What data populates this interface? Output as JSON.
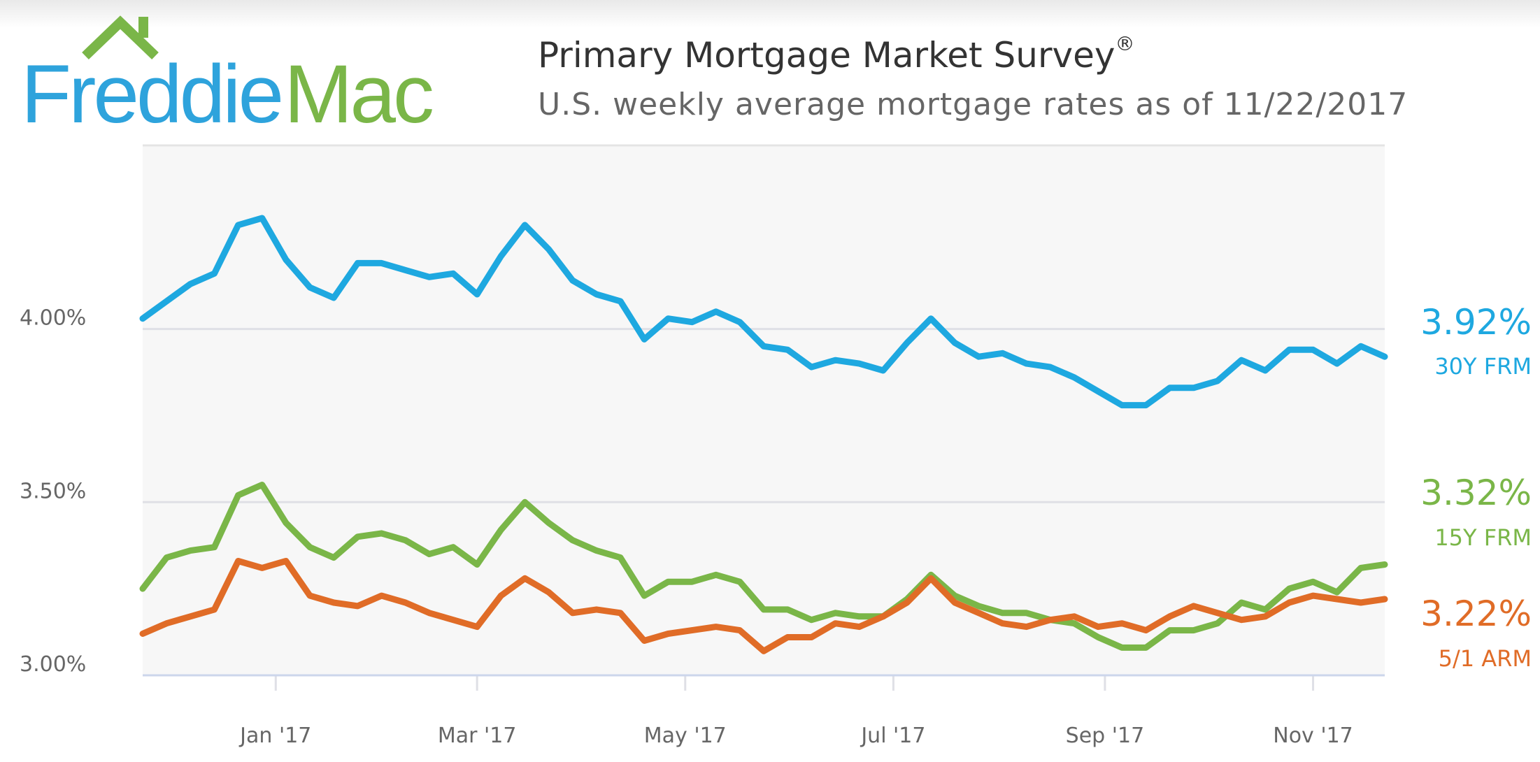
{
  "header": {
    "logo_text_1": "Freddie",
    "logo_text_2": "Mac",
    "title": "Primary Mortgage Market Survey",
    "title_mark": "®",
    "subtitle": "U.S. weekly average mortgage rates as of 11/22/2017"
  },
  "colors": {
    "blue": "#1ea8e0",
    "green": "#7ab648",
    "orange": "#e06c27",
    "plot_bg": "#f7f7f7",
    "grid": "#dfe0e6"
  },
  "chart_data": {
    "type": "line",
    "title": "Primary Mortgage Market Survey",
    "subtitle": "U.S. weekly average mortgage rates as of 11/22/2017",
    "x_start": "2016-11-23",
    "x_step_days": 7,
    "x_end": "2017-11-22",
    "xlabel": "",
    "ylabel": "",
    "ylim": [
      3.0,
      4.53
    ],
    "grid": true,
    "y_ticks": [
      {
        "value": 4.0,
        "label": "4.00%"
      },
      {
        "value": 3.5,
        "label": "3.50%"
      },
      {
        "value": 3.0,
        "label": "3.00%"
      }
    ],
    "x_ticks": [
      {
        "date": "2017-01-01",
        "label": "Jan '17"
      },
      {
        "date": "2017-03-01",
        "label": "Mar '17"
      },
      {
        "date": "2017-05-01",
        "label": "May '17"
      },
      {
        "date": "2017-07-01",
        "label": "Jul '17"
      },
      {
        "date": "2017-09-01",
        "label": "Sep '17"
      },
      {
        "date": "2017-11-01",
        "label": "Nov '17"
      }
    ],
    "series": [
      {
        "name": "30Y FRM",
        "latest": "3.92%",
        "color": "#1ea8e0",
        "values": [
          4.03,
          4.08,
          4.13,
          4.16,
          4.3,
          4.32,
          4.2,
          4.12,
          4.09,
          4.19,
          4.19,
          4.17,
          4.15,
          4.16,
          4.1,
          4.21,
          4.3,
          4.23,
          4.14,
          4.1,
          4.08,
          3.97,
          4.03,
          4.02,
          4.05,
          4.02,
          3.95,
          3.94,
          3.89,
          3.91,
          3.9,
          3.88,
          3.96,
          4.03,
          3.96,
          3.92,
          3.93,
          3.9,
          3.89,
          3.86,
          3.82,
          3.78,
          3.78,
          3.83,
          3.83,
          3.85,
          3.91,
          3.88,
          3.94,
          3.94,
          3.9,
          3.95,
          3.92
        ]
      },
      {
        "name": "15Y FRM",
        "latest": "3.32%",
        "color": "#7ab648",
        "values": [
          3.25,
          3.34,
          3.36,
          3.37,
          3.52,
          3.55,
          3.44,
          3.37,
          3.34,
          3.4,
          3.41,
          3.39,
          3.35,
          3.37,
          3.32,
          3.42,
          3.5,
          3.44,
          3.39,
          3.36,
          3.34,
          3.23,
          3.27,
          3.27,
          3.29,
          3.27,
          3.19,
          3.19,
          3.16,
          3.18,
          3.17,
          3.17,
          3.22,
          3.29,
          3.23,
          3.2,
          3.18,
          3.18,
          3.16,
          3.15,
          3.11,
          3.08,
          3.08,
          3.13,
          3.13,
          3.15,
          3.21,
          3.19,
          3.25,
          3.27,
          3.24,
          3.31,
          3.32
        ]
      },
      {
        "name": "5/1 ARM",
        "latest": "3.22%",
        "color": "#e06c27",
        "values": [
          3.12,
          3.15,
          3.17,
          3.19,
          3.33,
          3.31,
          3.33,
          3.23,
          3.21,
          3.2,
          3.23,
          3.21,
          3.18,
          3.16,
          3.14,
          3.23,
          3.28,
          3.24,
          3.18,
          3.19,
          3.18,
          3.1,
          3.12,
          3.13,
          3.14,
          3.13,
          3.07,
          3.11,
          3.11,
          3.15,
          3.14,
          3.17,
          3.21,
          3.28,
          3.21,
          3.18,
          3.15,
          3.14,
          3.16,
          3.17,
          3.14,
          3.15,
          3.13,
          3.17,
          3.2,
          3.18,
          3.16,
          3.17,
          3.21,
          3.23,
          3.22,
          3.21,
          3.22
        ]
      }
    ]
  }
}
